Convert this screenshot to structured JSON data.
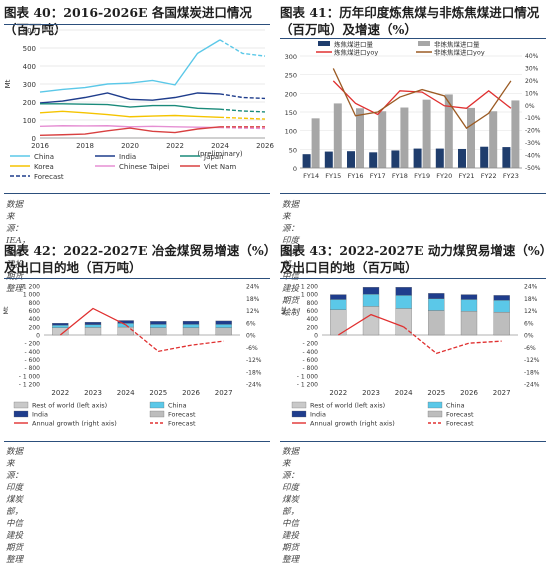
{
  "panels": {
    "p40": {
      "title": "图表 40：2016-2026E 各国煤炭进口情况（百万吨）",
      "source": "数据来源：IEA，中信建投期货整理"
    },
    "p41": {
      "title": "图表 41：历年印度炼焦煤与非炼焦煤进口情况（百万吨）及增速（%）",
      "source": "数据来源：印度煤炭部，中信建投期货绘制"
    },
    "p42": {
      "title": "图表 42：2022-2027E 冶金煤贸易增速（%）及出口目的地（百万吨）",
      "source": "数据来源：印度煤炭部，中信建投期货整理"
    },
    "p43": {
      "title": "图表 43：2022-2027E 动力煤贸易增速（%）及出口目的地（百万吨）",
      "source": "数据来源：印度煤炭部，中信建投期货整理"
    }
  },
  "chart_data": [
    {
      "id": "p40",
      "type": "line",
      "ylabel": "Mt",
      "x": [
        2016,
        2017,
        2018,
        2019,
        2020,
        2021,
        2022,
        2023,
        2024,
        2025,
        2026
      ],
      "xticks": [
        "2016",
        "2018",
        "2020",
        "2022",
        "2024",
        "2026"
      ],
      "xnote": "(preliminary)",
      "ylim": [
        0,
        600
      ],
      "yticks": [
        "0",
        "100",
        "200",
        "300",
        "400",
        "500",
        "600"
      ],
      "series": [
        {
          "name": "China",
          "color": "#5bc8e8",
          "values": [
            255,
            270,
            280,
            300,
            305,
            320,
            295,
            470,
            545,
            470,
            455
          ],
          "split": 8
        },
        {
          "name": "India",
          "color": "#1f3d8c",
          "values": [
            195,
            205,
            225,
            250,
            215,
            210,
            225,
            250,
            245,
            225,
            220
          ],
          "split": 8
        },
        {
          "name": "Japan",
          "color": "#1a8a7a",
          "values": [
            190,
            190,
            188,
            186,
            172,
            180,
            180,
            165,
            160,
            150,
            145
          ],
          "split": 8
        },
        {
          "name": "Korea",
          "color": "#f5c400",
          "values": [
            140,
            148,
            140,
            130,
            118,
            122,
            125,
            120,
            115,
            110,
            105
          ],
          "split": 8
        },
        {
          "name": "Chinese Taipei",
          "color": "#e58fd3",
          "values": [
            65,
            68,
            67,
            68,
            62,
            65,
            62,
            60,
            58,
            55,
            53
          ],
          "split": 8
        },
        {
          "name": "Viet Nam",
          "color": "#d84040",
          "values": [
            15,
            18,
            22,
            40,
            55,
            37,
            30,
            50,
            62,
            62,
            62
          ],
          "split": 8
        }
      ],
      "legend": [
        "China",
        "India",
        "Japan",
        "Korea",
        "Chinese Taipei",
        "Viet Nam",
        "Forecast"
      ]
    },
    {
      "id": "p41",
      "type": "bar",
      "categories": [
        "FY14",
        "FY15",
        "FY16",
        "FY17",
        "FY18",
        "FY19",
        "FY20",
        "FY21",
        "FY22",
        "FY23"
      ],
      "ylim": [
        0,
        300
      ],
      "yticks": [
        "0",
        "50",
        "100",
        "150",
        "200",
        "250",
        "300"
      ],
      "y2lim": [
        -50,
        40
      ],
      "y2ticks": [
        "-50%",
        "-40%",
        "-30%",
        "-20%",
        "-10%",
        "0%",
        "10%",
        "20%",
        "30%",
        "40%"
      ],
      "series": [
        {
          "name": "炼焦煤进口量",
          "color": "#1f3d6d",
          "values": [
            37,
            44,
            45,
            42,
            47,
            52,
            52,
            51,
            57,
            56
          ]
        },
        {
          "name": "非炼焦煤进口量",
          "color": "#a6a6a6",
          "values": [
            133,
            173,
            160,
            152,
            162,
            183,
            197,
            161,
            152,
            181
          ]
        },
        {
          "name": "炼焦煤进口yoy",
          "color": "#e03030",
          "axis": "right",
          "values": [
            null,
            20,
            2,
            -7,
            12,
            11,
            0,
            -2,
            12,
            -2
          ]
        },
        {
          "name": "非炼焦煤进口yoy",
          "color": "#9b5b24",
          "axis": "right",
          "values": [
            null,
            30,
            -8,
            -5,
            7,
            13,
            8,
            -18,
            -6,
            20
          ]
        }
      ]
    },
    {
      "id": "p42",
      "type": "bar",
      "ylabel": "Mt",
      "categories": [
        "2022",
        "2023",
        "2024",
        "2025",
        "2026",
        "2027"
      ],
      "ylim": [
        -1200,
        1200
      ],
      "yticks": [
        "- 1 200",
        "- 1 000",
        "- 800",
        "- 600",
        "- 400",
        "- 200",
        "0",
        "200",
        "400",
        "600",
        "800",
        "1 000",
        "1 200"
      ],
      "y2lim": [
        -24,
        24
      ],
      "y2ticks": [
        "-24%",
        "-18%",
        "-12%",
        "-6%",
        "0%",
        "6%",
        "12%",
        "18%",
        "24%"
      ],
      "series": [
        {
          "name": "Rest of world (left axis)",
          "color": "#c9c9c9",
          "values": [
            180,
            185,
            195,
            180,
            180,
            180
          ]
        },
        {
          "name": "China",
          "color": "#5bc8e8",
          "values": [
            60,
            70,
            90,
            80,
            80,
            80
          ]
        },
        {
          "name": "India",
          "color": "#1f3d8c",
          "values": [
            50,
            60,
            70,
            75,
            80,
            85
          ]
        },
        {
          "name": "Annual growth (right axis)",
          "color": "#e03030",
          "axis": "right",
          "values": [
            0,
            13,
            5,
            -8,
            -5,
            -3
          ]
        }
      ],
      "legend": [
        "Rest of world (left axis)",
        "China",
        "India",
        "Forecast",
        "Annual growth (right axis)",
        "Forecast"
      ]
    },
    {
      "id": "p43",
      "type": "bar",
      "ylabel": "Mt",
      "categories": [
        "2022",
        "2023",
        "2024",
        "2025",
        "2026",
        "2027"
      ],
      "ylim": [
        -1200,
        1200
      ],
      "yticks": [
        "- 1 200",
        "- 1 000",
        "- 800",
        "- 600",
        "- 400",
        "- 200",
        "0",
        "200",
        "400",
        "600",
        "800",
        "1 000",
        "1 200"
      ],
      "y2lim": [
        -24,
        24
      ],
      "y2ticks": [
        "-24%",
        "-18%",
        "-12%",
        "-6%",
        "0%",
        "6%",
        "12%",
        "18%",
        "24%"
      ],
      "series": [
        {
          "name": "Rest of world (left axis)",
          "color": "#c9c9c9",
          "values": [
            620,
            700,
            650,
            600,
            580,
            560
          ]
        },
        {
          "name": "China",
          "color": "#5bc8e8",
          "values": [
            250,
            300,
            320,
            290,
            290,
            290
          ]
        },
        {
          "name": "India",
          "color": "#1f3d8c",
          "values": [
            120,
            170,
            200,
            130,
            120,
            120
          ]
        },
        {
          "name": "Annual growth (right axis)",
          "color": "#e03030",
          "axis": "right",
          "values": [
            0,
            10,
            4,
            -9,
            -4,
            -3
          ]
        }
      ],
      "legend": [
        "Rest of world (left axis)",
        "China",
        "India",
        "Forecast",
        "Annual growth (right axis)",
        "Forecast"
      ]
    }
  ]
}
